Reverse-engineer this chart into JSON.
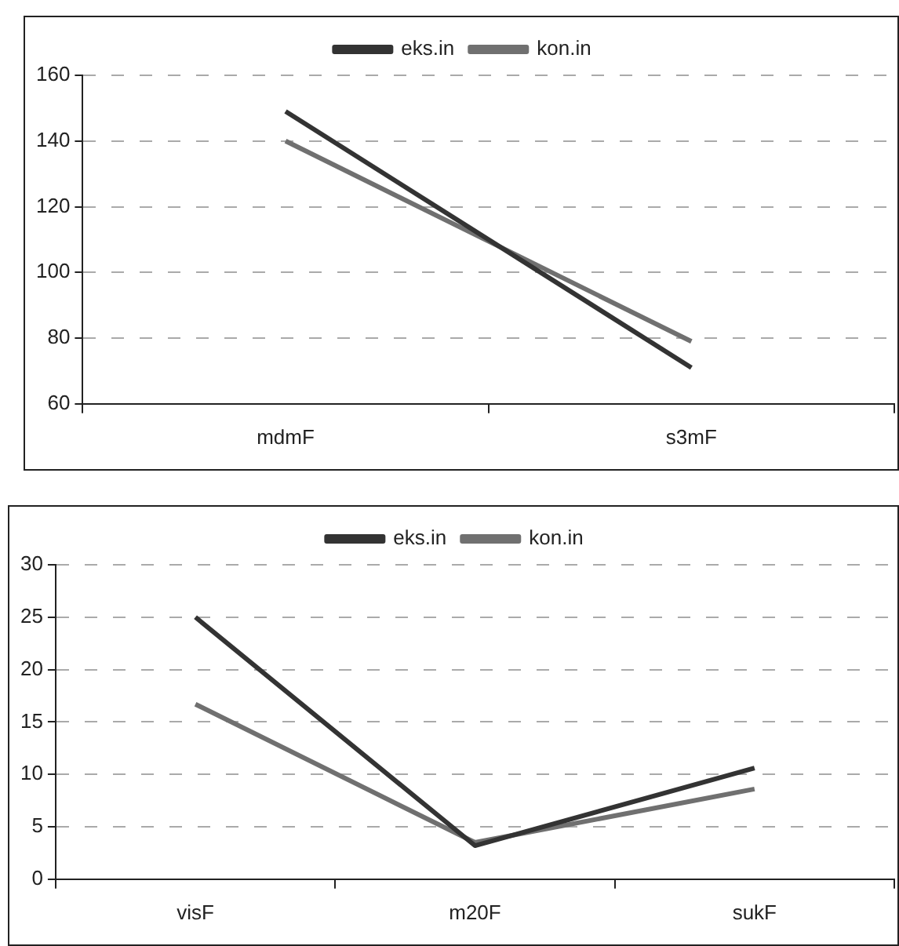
{
  "chart_data": [
    {
      "type": "line",
      "categories": [
        "mdmF",
        "s3mF"
      ],
      "series": [
        {
          "name": "eks.in",
          "color": "#333333",
          "values": [
            149,
            71
          ]
        },
        {
          "name": "kon.in",
          "color": "#707070",
          "values": [
            140,
            79
          ]
        }
      ],
      "ylim": [
        60,
        160
      ],
      "yticks": [
        60,
        80,
        100,
        120,
        140,
        160
      ],
      "grid": "y",
      "legend": "top",
      "marker": "none",
      "line_style": "solid"
    },
    {
      "type": "line",
      "categories": [
        "visF",
        "m20F",
        "sukF"
      ],
      "series": [
        {
          "name": "eks.in",
          "color": "#333333",
          "values": [
            25,
            3.2,
            10.6
          ]
        },
        {
          "name": "kon.in",
          "color": "#707070",
          "values": [
            16.7,
            3.5,
            8.6
          ]
        }
      ],
      "ylim": [
        0,
        30
      ],
      "yticks": [
        0,
        5,
        10,
        15,
        20,
        25,
        30
      ],
      "grid": "y",
      "legend": "top",
      "marker": "none",
      "line_style": "solid"
    }
  ]
}
